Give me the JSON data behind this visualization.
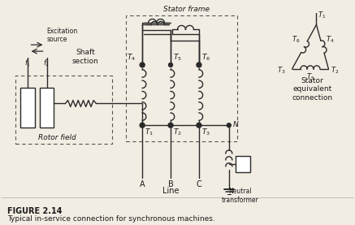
{
  "figure_label": "FIGURE 2.14",
  "figure_caption": "Typical in-service connection for synchronous machines.",
  "bg_color": "#f2ede3",
  "line_color": "#2a2a2a",
  "text_color": "#1a1a1a",
  "stator_frame_label": "Stator frame",
  "stator_equiv_label": "Stator\nequivalent\nconnection",
  "rotor_field_label": "Rotor field",
  "shaft_section_label": "Shaft\nsection",
  "excitation_label": "Excitation\nsource",
  "neutral_transformer_label": "Neutral\ntransformer",
  "line_label": "Line",
  "line_A": "A",
  "line_B": "B",
  "line_C": "C"
}
